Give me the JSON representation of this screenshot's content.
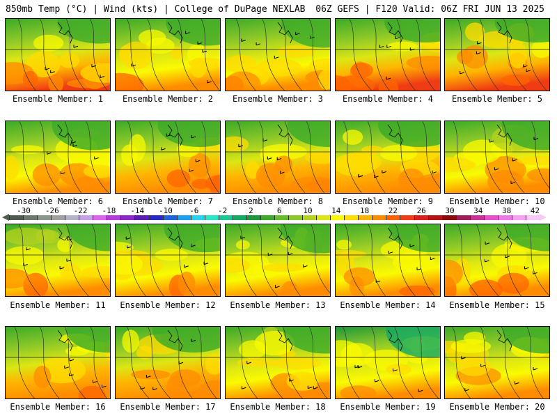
{
  "header": {
    "left_title": "850mb Temp (°C) | Wind (kts) | College of DuPage NEXLAB",
    "right_title": "06Z GEFS | F120 Valid: 06Z FRI JUN 13 2025"
  },
  "panels": [
    {
      "label": "Ensemble Member: 1",
      "warmth": 0.65
    },
    {
      "label": "Ensemble Member: 2",
      "warmth": 0.55
    },
    {
      "label": "Ensemble Member: 3",
      "warmth": 0.45
    },
    {
      "label": "Ensemble Member: 4",
      "warmth": 0.7
    },
    {
      "label": "Ensemble Member: 5",
      "warmth": 0.7
    },
    {
      "label": "Ensemble Member: 6",
      "warmth": 0.45
    },
    {
      "label": "Ensemble Member: 7",
      "warmth": 0.6
    },
    {
      "label": "Ensemble Member: 8",
      "warmth": 0.6
    },
    {
      "label": "Ensemble Member: 9",
      "warmth": 0.6
    },
    {
      "label": "Ensemble Member: 10",
      "warmth": 0.45
    },
    {
      "label": "Ensemble Member: 11",
      "warmth": 0.55
    },
    {
      "label": "Ensemble Member: 12",
      "warmth": 0.5
    },
    {
      "label": "Ensemble Member: 13",
      "warmth": 0.45
    },
    {
      "label": "Ensemble Member: 14",
      "warmth": 0.5
    },
    {
      "label": "Ensemble Member: 15",
      "warmth": 0.55
    },
    {
      "label": "Ensemble Member: 16",
      "warmth": 0.6
    },
    {
      "label": "Ensemble Member: 17",
      "warmth": 0.6
    },
    {
      "label": "Ensemble Member: 18",
      "warmth": 0.55
    },
    {
      "label": "Ensemble Member: 19",
      "warmth": 0.35
    },
    {
      "label": "Ensemble Member: 20",
      "warmth": 0.55
    }
  ],
  "colorbar": {
    "labels": [
      "-30",
      "-26",
      "-22",
      "-18",
      "-14",
      "-10",
      "-6",
      "-2",
      "2",
      "6",
      "10",
      "14",
      "18",
      "22",
      "26",
      "30",
      "34",
      "38",
      "42"
    ],
    "colors": [
      "#505a50",
      "#6e786e",
      "#8c968c",
      "#a0a0a0",
      "#b4b4c8",
      "#c8a0e6",
      "#dc64f0",
      "#b43cdc",
      "#8c28c8",
      "#5a1eb4",
      "#2828c8",
      "#1e64dc",
      "#1ea0f0",
      "#28d2f0",
      "#28e6c8",
      "#1ec896",
      "#14aa64",
      "#1e963c",
      "#3caa28",
      "#64be28",
      "#8cc828",
      "#b4d21e",
      "#dce614",
      "#fafa00",
      "#ffdc00",
      "#ffb400",
      "#ff8c00",
      "#ff6400",
      "#f03c14",
      "#dc1e1e",
      "#b41414",
      "#8c0a0a",
      "#a01e5a",
      "#c83296",
      "#e650c8",
      "#f078e6",
      "#f5a0f0",
      "#fac8fa"
    ]
  }
}
